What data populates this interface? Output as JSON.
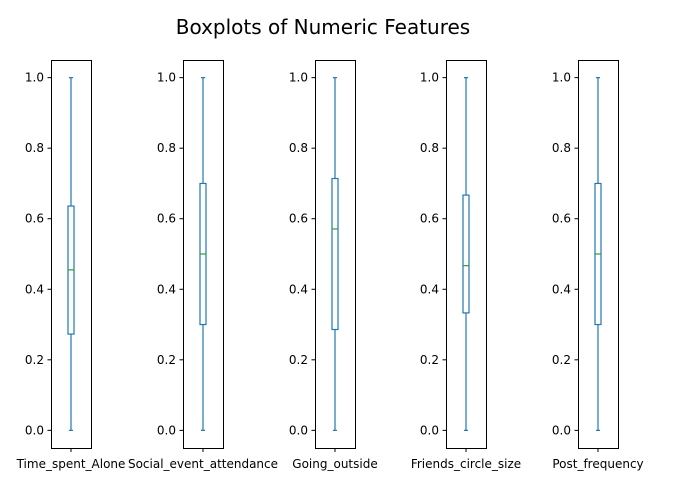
{
  "chart_data": {
    "type": "boxplot",
    "title": "Boxplots of Numeric Features",
    "ylim": [
      -0.05,
      1.05
    ],
    "yticks": [
      0.0,
      0.2,
      0.4,
      0.6,
      0.8,
      1.0
    ],
    "ytick_labels": [
      "0.0",
      "0.2",
      "0.4",
      "0.6",
      "0.8",
      "1.0"
    ],
    "grid": false,
    "colors": {
      "box": "#1f77b4",
      "median": "#2ca02c",
      "axes": "#000000"
    },
    "series": [
      {
        "name": "Time_spent_Alone",
        "min": 0.0,
        "q1": 0.273,
        "median": 0.455,
        "q3": 0.636,
        "max": 1.0
      },
      {
        "name": "Social_event_attendance",
        "min": 0.0,
        "q1": 0.3,
        "median": 0.5,
        "q3": 0.7,
        "max": 1.0
      },
      {
        "name": "Going_outside",
        "min": 0.0,
        "q1": 0.286,
        "median": 0.571,
        "q3": 0.714,
        "max": 1.0
      },
      {
        "name": "Friends_circle_size",
        "min": 0.0,
        "q1": 0.333,
        "median": 0.467,
        "q3": 0.667,
        "max": 1.0
      },
      {
        "name": "Post_frequency",
        "min": 0.0,
        "q1": 0.3,
        "median": 0.5,
        "q3": 0.7,
        "max": 1.0
      }
    ]
  }
}
